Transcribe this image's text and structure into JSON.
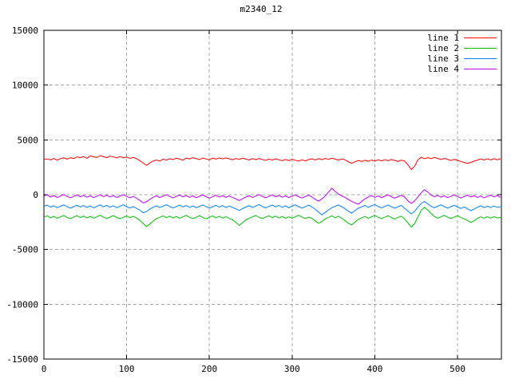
{
  "window": {
    "title": "m2340_12"
  },
  "colors": {
    "background": "#ffffff",
    "grid": "#a8a8a8",
    "axis": "#000000",
    "text": "#000000"
  },
  "legend": {
    "position": "top-right",
    "items": [
      {
        "label": "line 1",
        "color": "#ff0000"
      },
      {
        "label": "line 2",
        "color": "#00c000"
      },
      {
        "label": "line 3",
        "color": "#0080ff"
      },
      {
        "label": "line 4",
        "color": "#c000ff"
      }
    ]
  },
  "chart_data": {
    "type": "line",
    "title": "m2340_12",
    "xlabel": "",
    "ylabel": "",
    "xlim": [
      0,
      553
    ],
    "ylim": [
      -15000,
      15000
    ],
    "x_ticks": [
      0,
      100,
      200,
      300,
      400,
      500
    ],
    "y_ticks": [
      -15000,
      -10000,
      -5000,
      0,
      5000,
      10000,
      15000
    ],
    "grid": true,
    "grid_style": "dashed",
    "legend_position": "top-right",
    "x_start": 0,
    "x_step": 4,
    "series": [
      {
        "name": "line 1",
        "color": "#ff0000",
        "values": [
          3210,
          3262,
          3180,
          3301,
          3152,
          3294,
          3358,
          3247,
          3376,
          3300,
          3449,
          3387,
          3470,
          3322,
          3548,
          3462,
          3390,
          3558,
          3466,
          3380,
          3520,
          3441,
          3355,
          3478,
          3360,
          3440,
          3310,
          3398,
          3292,
          3105,
          2885,
          2670,
          2900,
          3076,
          3165,
          3060,
          3250,
          3160,
          3284,
          3204,
          3329,
          3245,
          3155,
          3339,
          3260,
          3379,
          3294,
          3201,
          3340,
          3264,
          3184,
          3345,
          3250,
          3360,
          3270,
          3354,
          3274,
          3189,
          3304,
          3224,
          3339,
          3249,
          3164,
          3294,
          3199,
          3309,
          3219,
          3129,
          3244,
          3159,
          3274,
          3184,
          3099,
          3209,
          3119,
          3234,
          3144,
          3059,
          3179,
          3089,
          3204,
          3274,
          3169,
          3294,
          3199,
          3314,
          3224,
          3334,
          3244,
          3154,
          3269,
          3179,
          2994,
          2869,
          3009,
          3124,
          3034,
          3144,
          3054,
          3164,
          3074,
          3179,
          3089,
          3199,
          3109,
          3214,
          3124,
          3039,
          3154,
          3064,
          2729,
          2294,
          2584,
          3174,
          3414,
          3289,
          3384,
          3294,
          3399,
          3304,
          3209,
          3314,
          3219,
          3124,
          3229,
          3134,
          3039,
          2939,
          2849,
          2949,
          3059,
          3159,
          3264,
          3169,
          3274,
          3179,
          3284,
          3189,
          3279
        ]
      },
      {
        "name": "line 2",
        "color": "#00c000",
        "values": [
          -2050,
          -1925,
          -2110,
          -1980,
          -2155,
          -2020,
          -1890,
          -2065,
          -2190,
          -2045,
          -1915,
          -2085,
          -1950,
          -2120,
          -1985,
          -2150,
          -2015,
          -1880,
          -2055,
          -2180,
          -2040,
          -1905,
          -2075,
          -2195,
          -2060,
          -1930,
          -2100,
          -1965,
          -2135,
          -2350,
          -2620,
          -2905,
          -2680,
          -2410,
          -2190,
          -2060,
          -1930,
          -2095,
          -1960,
          -2125,
          -1990,
          -2155,
          -2020,
          -1885,
          -2060,
          -2185,
          -2050,
          -1915,
          -2080,
          -2200,
          -2065,
          -1935,
          -2105,
          -1970,
          -2140,
          -2005,
          -2170,
          -2290,
          -2520,
          -2805,
          -2560,
          -2310,
          -2155,
          -2025,
          -1890,
          -2060,
          -2185,
          -2055,
          -1920,
          -2090,
          -1955,
          -2125,
          -1990,
          -2155,
          -2020,
          -2145,
          -2010,
          -1875,
          -2050,
          -2175,
          -2040,
          -2165,
          -2390,
          -2615,
          -2450,
          -2200,
          -2070,
          -1940,
          -2110,
          -1975,
          -2145,
          -2380,
          -2610,
          -2755,
          -2500,
          -2250,
          -2120,
          -1985,
          -2155,
          -2020,
          -1890,
          -2060,
          -2185,
          -2055,
          -1920,
          -2090,
          -2215,
          -2080,
          -1950,
          -2230,
          -2570,
          -2950,
          -2650,
          -2050,
          -1420,
          -1160,
          -1390,
          -1720,
          -1985,
          -2150,
          -2015,
          -1885,
          -2055,
          -2180,
          -2045,
          -1915,
          -2085,
          -2210,
          -2350,
          -2540,
          -2380,
          -2150,
          -2020,
          -2145,
          -2010,
          -2135,
          -2000,
          -2120,
          -2060
        ]
      },
      {
        "name": "line 3",
        "color": "#0080ff",
        "values": [
          -1060,
          -950,
          -1135,
          -1010,
          -1180,
          -1055,
          -925,
          -1100,
          -1225,
          -1090,
          -960,
          -1130,
          -995,
          -1165,
          -1030,
          -1200,
          -1065,
          -935,
          -1105,
          -975,
          -1145,
          -1015,
          -1185,
          -1050,
          -920,
          -1090,
          -1215,
          -1080,
          -1250,
          -1420,
          -1650,
          -1540,
          -1320,
          -1140,
          -1010,
          -1175,
          -1045,
          -915,
          -1085,
          -1210,
          -1075,
          -945,
          -1115,
          -985,
          -1155,
          -1020,
          -1190,
          -1060,
          -930,
          -1100,
          -1225,
          -1095,
          -965,
          -1135,
          -1000,
          -1170,
          -1040,
          -1160,
          -1290,
          -1440,
          -1280,
          -1130,
          -1000,
          -1165,
          -1035,
          -905,
          -1075,
          -1200,
          -1070,
          -940,
          -1110,
          -980,
          -1150,
          -1015,
          -1185,
          -1055,
          -925,
          -1095,
          -1220,
          -1085,
          -955,
          -1125,
          -1340,
          -1585,
          -1840,
          -1620,
          -1390,
          -1190,
          -1060,
          -930,
          -1100,
          -1280,
          -1510,
          -1680,
          -1450,
          -1240,
          -1110,
          -980,
          -1150,
          -1015,
          -905,
          -1075,
          -1200,
          -1070,
          -940,
          -1110,
          -1235,
          -1100,
          -970,
          -1250,
          -1490,
          -1750,
          -1520,
          -1150,
          -800,
          -620,
          -840,
          -1060,
          -1190,
          -1055,
          -925,
          -1095,
          -1220,
          -1090,
          -960,
          -1130,
          -1255,
          -1120,
          -1290,
          -1460,
          -1300,
          -1140,
          -1010,
          -1180,
          -1045,
          -1170,
          -1035,
          -1155,
          -1090
        ]
      },
      {
        "name": "line 4",
        "color": "#c000ff",
        "values": [
          -130,
          -10,
          -215,
          -80,
          -260,
          -125,
          15,
          -160,
          -290,
          -150,
          -20,
          -195,
          -60,
          -235,
          -100,
          -270,
          -135,
          -5,
          -175,
          -45,
          -215,
          -85,
          -255,
          -120,
          10,
          -160,
          -290,
          -155,
          -330,
          -520,
          -750,
          -640,
          -420,
          -230,
          -100,
          -265,
          -130,
          0,
          -170,
          -295,
          -160,
          -30,
          -200,
          -70,
          -240,
          -105,
          -275,
          -145,
          -15,
          -185,
          -310,
          -175,
          -45,
          -215,
          -85,
          -255,
          -120,
          -245,
          -380,
          -530,
          -370,
          -215,
          -85,
          -250,
          -120,
          10,
          -160,
          -285,
          -155,
          -25,
          -195,
          -65,
          -235,
          -100,
          -270,
          -140,
          -10,
          -180,
          -305,
          -170,
          -40,
          -210,
          -430,
          -600,
          -380,
          -120,
          240,
          580,
          310,
          60,
          -110,
          -250,
          -430,
          -610,
          -760,
          -870,
          -620,
          -380,
          -210,
          -90,
          -240,
          -110,
          -280,
          -145,
          -15,
          -185,
          -310,
          -180,
          -50,
          -220,
          -560,
          -800,
          -570,
          -210,
          170,
          450,
          230,
          -40,
          -190,
          -60,
          -230,
          -100,
          -270,
          -140,
          -10,
          -180,
          -305,
          -175,
          -45,
          -215,
          -85,
          -255,
          -125,
          -290,
          -160,
          -30,
          -200,
          -70,
          -240
        ]
      }
    ]
  }
}
